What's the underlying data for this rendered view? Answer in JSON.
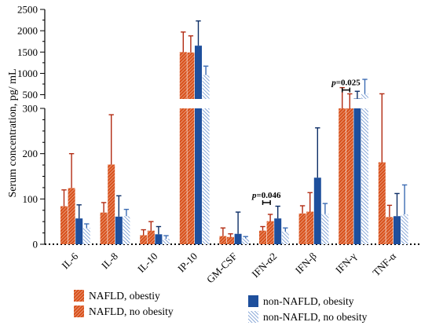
{
  "chart_data": {
    "type": "bar",
    "ylabel": "Serum concentration, pg/ mL",
    "categories": [
      "IL-6",
      "IL-8",
      "IL-10",
      "IP-10",
      "GM-CSF",
      "IFN-α2",
      "IFN-β",
      "IFN-γ",
      "TNF-α"
    ],
    "axis_break": {
      "lower_range": [
        0,
        300
      ],
      "upper_range": [
        400,
        2500
      ],
      "lower_ticks": [
        "0",
        "100",
        "200",
        "300"
      ],
      "upper_ticks": [
        "500",
        "1000",
        "1500",
        "2000",
        "2500"
      ]
    },
    "series": [
      {
        "name": "NAFLD, obestiy",
        "color": "#d9531e",
        "pattern": "hatched",
        "values": [
          84,
          70,
          20,
          1500,
          18,
          30,
          68,
          385,
          181
        ],
        "errors": [
          36,
          22,
          12,
          470,
          18,
          9,
          17,
          280,
          340
        ]
      },
      {
        "name": "NAFLD, no obesity",
        "color": "#d9531e",
        "pattern": "hatched",
        "values": [
          124,
          176,
          30,
          1490,
          16,
          51,
          72,
          380,
          60
        ],
        "errors": [
          76,
          110,
          20,
          390,
          7,
          15,
          42,
          140,
          26
        ]
      },
      {
        "name": "non-NAFLD, obesity",
        "color": "#1e4f9c",
        "pattern": "solid",
        "values": [
          57,
          61,
          22,
          1650,
          23,
          57,
          147,
          410,
          62
        ],
        "errors": [
          30,
          46,
          17,
          580,
          48,
          27,
          110,
          170,
          50
        ]
      },
      {
        "name": "non-NAFLD, no obesity",
        "color": "#6f95cf",
        "pattern": "hatched-light",
        "values": [
          36,
          62,
          12,
          960,
          13,
          28,
          67,
          520,
          66
        ],
        "errors": [
          9,
          15,
          7,
          210,
          4,
          8,
          23,
          340,
          65
        ]
      }
    ],
    "annotations": [
      {
        "category": "IFN-α2",
        "from_series": 0,
        "to_series": 1,
        "text": "=0.046",
        "prefix": "p"
      },
      {
        "category": "IFN-γ",
        "from_series": 0,
        "to_series": 1,
        "text": "=0.025",
        "prefix": "p"
      }
    ],
    "legend_placement": "bottom"
  },
  "colors": {
    "nafld": "#d9531e",
    "non_nafld_obesity": "#1e4f9c",
    "non_nafld_no_obesity": "#6f95cf"
  }
}
